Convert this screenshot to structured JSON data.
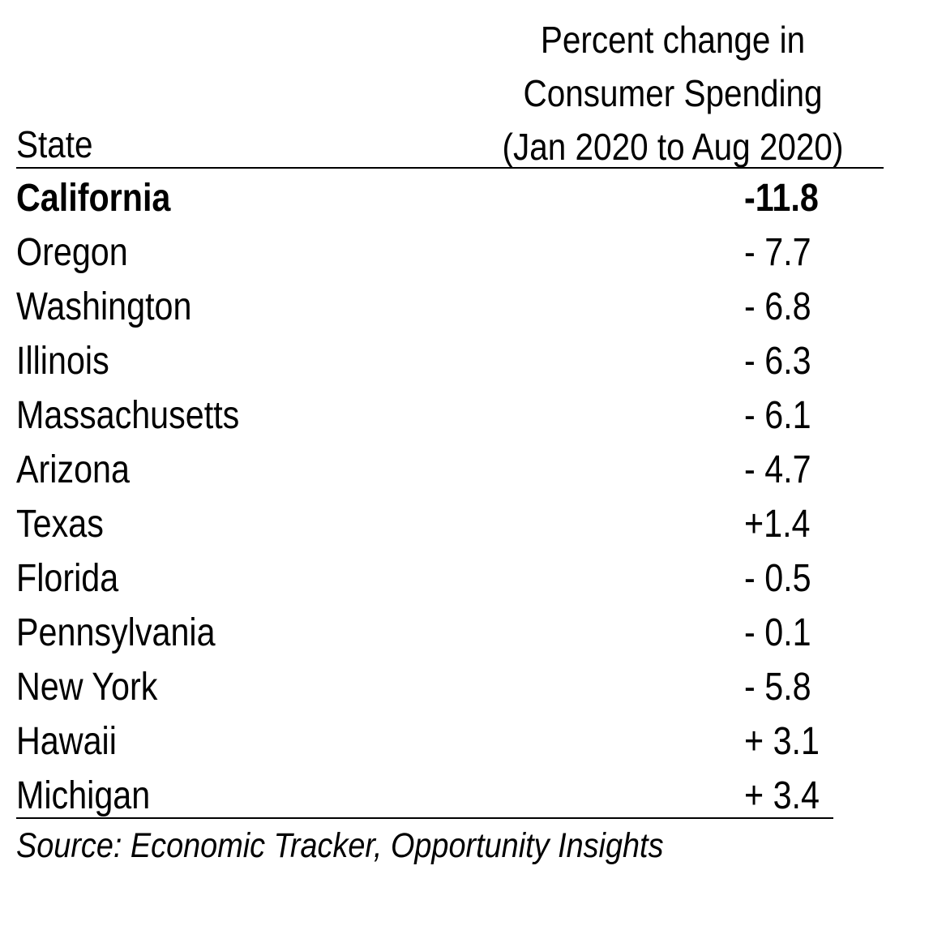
{
  "table": {
    "header_state": "State",
    "header_change_lines": [
      "Percent change in",
      "Consumer Spending",
      "(Jan 2020 to Aug 2020)"
    ],
    "rows": [
      {
        "state": "California",
        "value": "-11.8",
        "bold": true
      },
      {
        "state": "Oregon",
        "value": "- 7.7"
      },
      {
        "state": "Washington",
        "value": "- 6.8"
      },
      {
        "state": "Illinois",
        "value": "- 6.3"
      },
      {
        "state": "Massachusetts",
        "value": "- 6.1"
      },
      {
        "state": "Arizona",
        "value": "- 4.7"
      },
      {
        "state": "Texas",
        "value": "+1.4"
      },
      {
        "state": "Florida",
        "value": "- 0.5"
      },
      {
        "state": "Pennsylvania",
        "value": "- 0.1"
      },
      {
        "state": "New York",
        "value": "- 5.8"
      },
      {
        "state": "Hawaii",
        "value": "+ 3.1"
      },
      {
        "state": "Michigan",
        "value": "+ 3.4"
      }
    ]
  },
  "source": "Source: Economic Tracker, Opportunity Insights"
}
